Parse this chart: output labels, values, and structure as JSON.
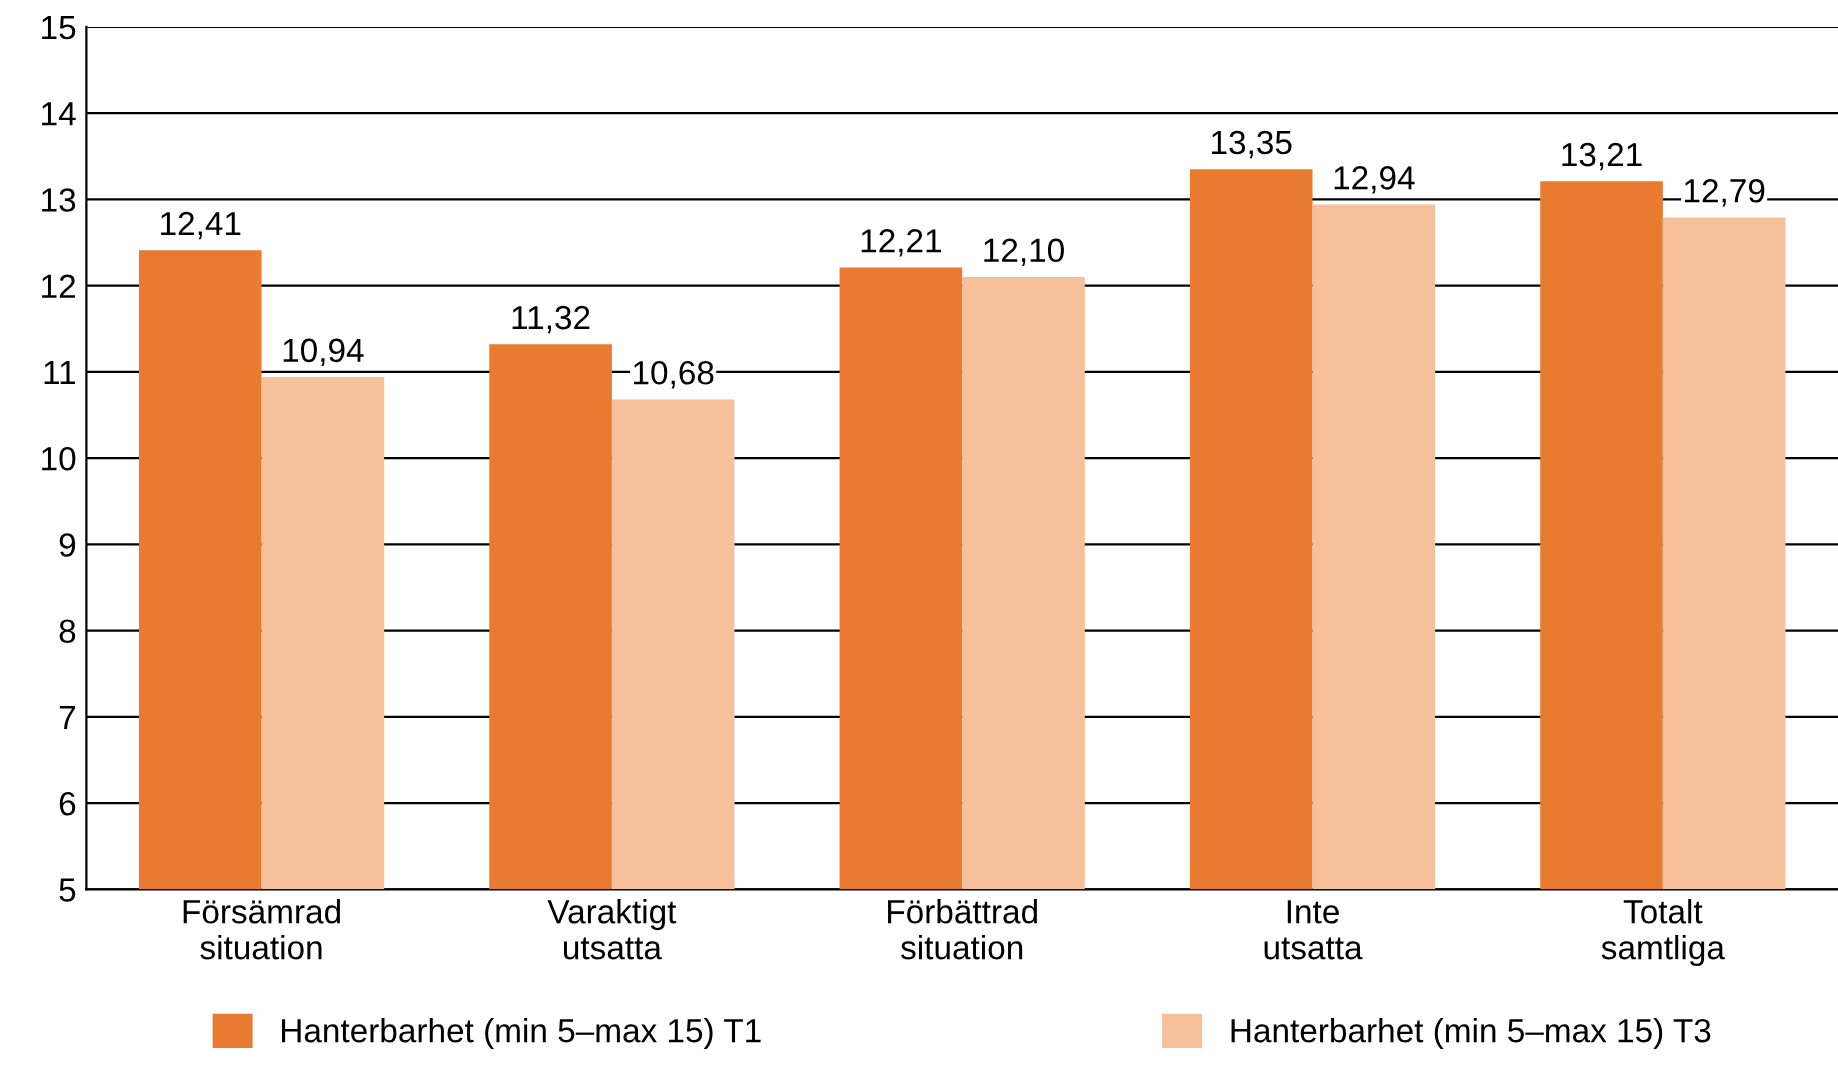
{
  "chart_data": {
    "type": "bar",
    "categories": [
      "Försämrad\nsituation",
      "Varaktigt\nutsatta",
      "Förbättrad\nsituation",
      "Inte\nutsatta",
      "Totalt\nsamtliga"
    ],
    "series": [
      {
        "name": "Hanterbarhet (min 5–max 15) T1",
        "color": "#e87b30",
        "values": [
          12.41,
          11.32,
          12.21,
          13.35,
          13.21
        ],
        "value_labels": [
          "12,41",
          "11,32",
          "12,21",
          "13,35",
          "13,21"
        ]
      },
      {
        "name": "Hanterbarhet (min 5–max 15) T3",
        "color": "#f5c09a",
        "values": [
          10.94,
          10.68,
          12.1,
          12.94,
          12.79
        ],
        "value_labels": [
          "10,94",
          "10,68",
          "12,10",
          "12,94",
          "12,79"
        ]
      }
    ],
    "ylim": [
      5,
      15
    ],
    "yticks": [
      5,
      6,
      7,
      8,
      9,
      10,
      11,
      12,
      13,
      14,
      15
    ],
    "grid": "y",
    "legend": "bottom"
  }
}
